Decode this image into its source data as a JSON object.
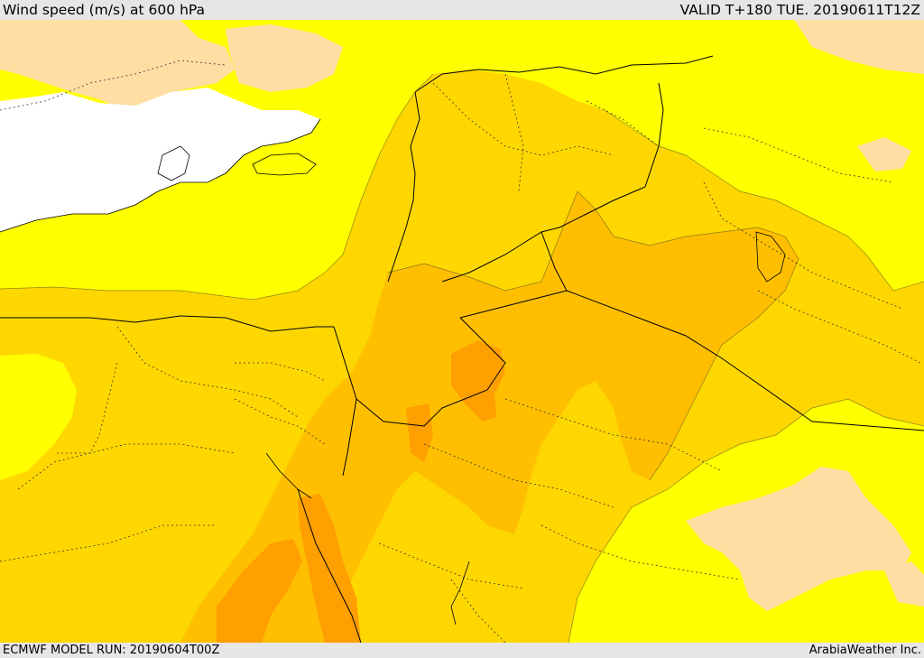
{
  "header": {
    "title": "Wind speed (m/s) at 600 hPa",
    "valid_time": "VALID T+180 TUE. 20190611T12Z"
  },
  "footer": {
    "model_run": "ECMWF MODEL RUN: 20190604T00Z",
    "credit": "ArabiaWeather Inc."
  },
  "colors": {
    "sea_mask": "#ffffff",
    "level_low": "#ffdea4",
    "level_1": "#ffff00",
    "level_2": "#ffd700",
    "level_3": "#ffbf00",
    "level_4": "#ff9f00",
    "boundary": "#000000"
  }
}
